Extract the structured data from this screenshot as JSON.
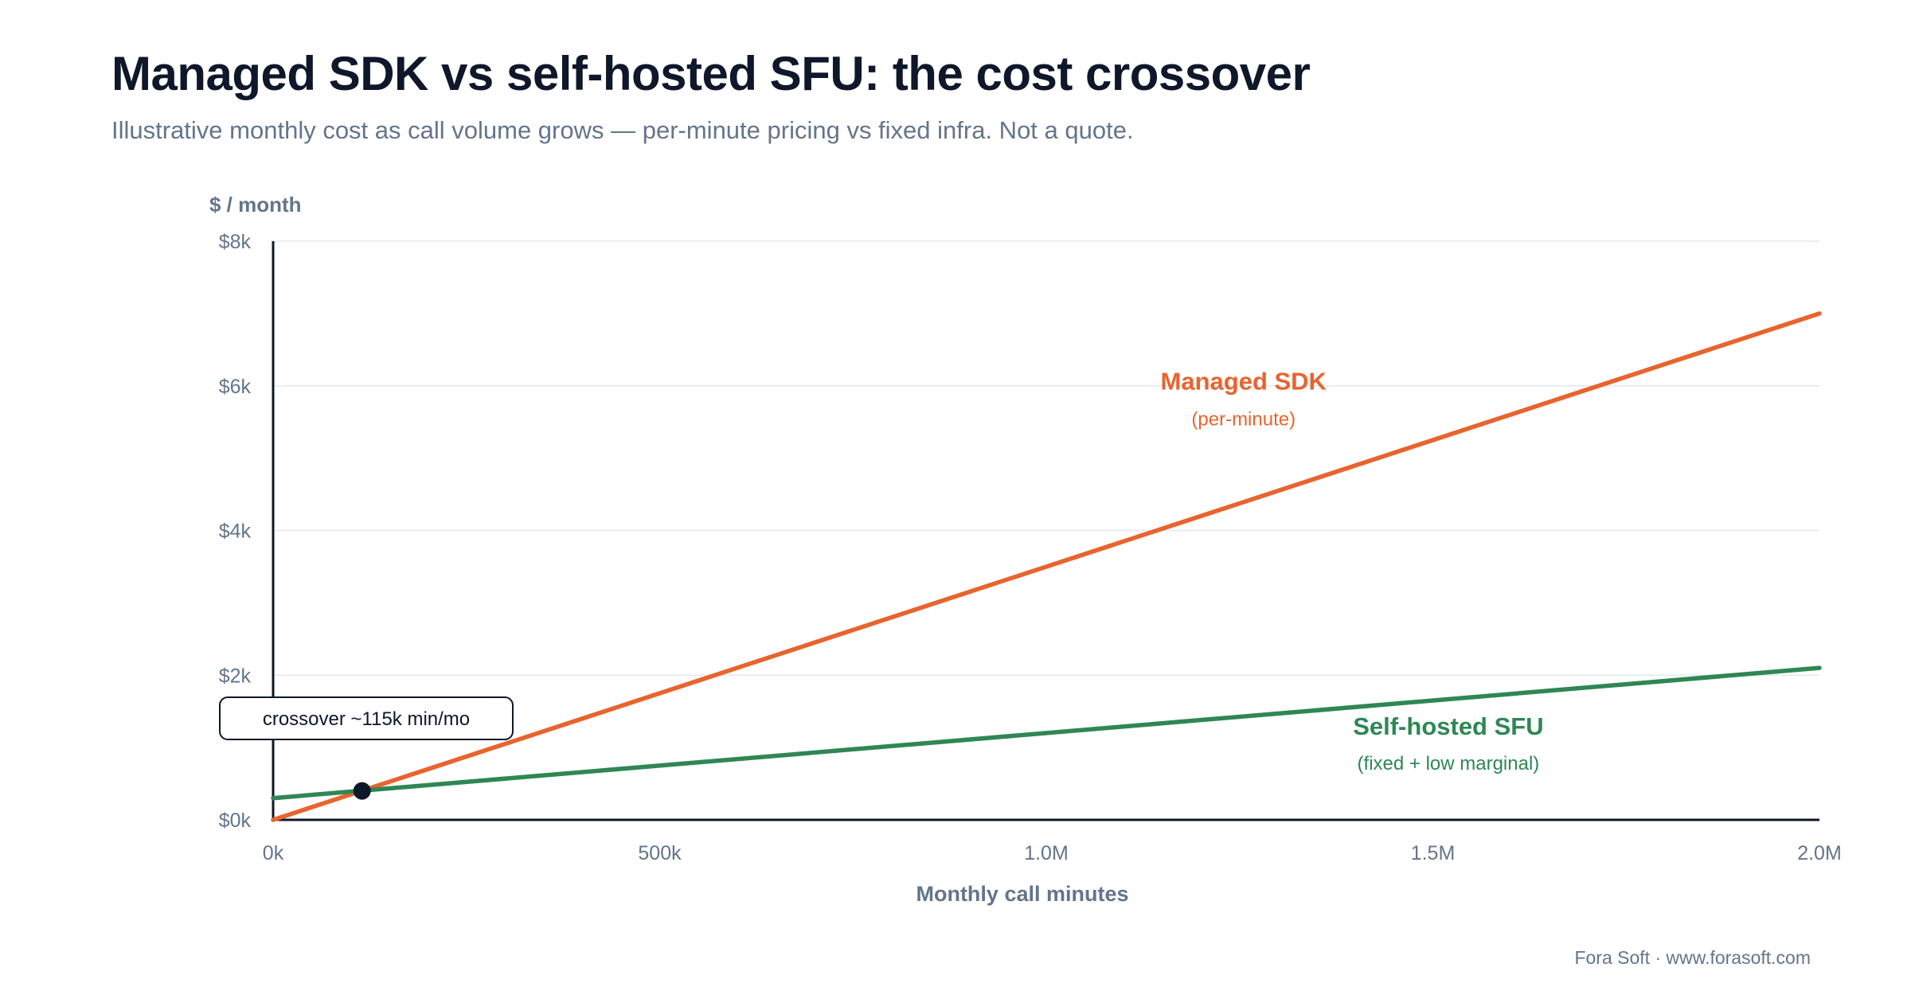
{
  "header": {
    "title": "Managed SDK vs self-hosted SFU: the cost crossover",
    "subtitle": "Illustrative monthly cost as call volume grows — per-minute pricing vs fixed infra. Not a quote."
  },
  "footer": {
    "credit": "Fora Soft · www.forasoft.com"
  },
  "chart_data": {
    "type": "line",
    "title": "Managed SDK vs self-hosted SFU: the cost crossover",
    "subtitle": "Illustrative monthly cost as call volume grows — per-minute pricing vs fixed infra. Not a quote.",
    "xlabel": "Monthly call minutes",
    "ylabel": "$ / month",
    "xlim": [
      0,
      2000000
    ],
    "ylim": [
      0,
      8000
    ],
    "x_ticks": [
      {
        "value": 0,
        "label": "0k"
      },
      {
        "value": 500000,
        "label": "500k"
      },
      {
        "value": 1000000,
        "label": "1.0M"
      },
      {
        "value": 1500000,
        "label": "1.5M"
      },
      {
        "value": 2000000,
        "label": "2.0M"
      }
    ],
    "y_ticks": [
      {
        "value": 0,
        "label": "$0k"
      },
      {
        "value": 2000,
        "label": "$2k"
      },
      {
        "value": 4000,
        "label": "$4k"
      },
      {
        "value": 6000,
        "label": "$6k"
      },
      {
        "value": 8000,
        "label": "$8k"
      }
    ],
    "grid": "horizontal",
    "series": [
      {
        "name": "Managed SDK",
        "sublabel": "(per-minute)",
        "color": "#e8642e",
        "x": [
          0,
          2000000
        ],
        "y": [
          0,
          7000
        ]
      },
      {
        "name": "Self-hosted SFU",
        "sublabel": "(fixed + low marginal)",
        "color": "#2e8754",
        "x": [
          0,
          2000000
        ],
        "y": [
          300,
          2100
        ]
      }
    ],
    "annotation": {
      "text": "crossover ~115k min/mo",
      "x": 115000,
      "y": 400,
      "marker_color": "#0f172a"
    }
  }
}
